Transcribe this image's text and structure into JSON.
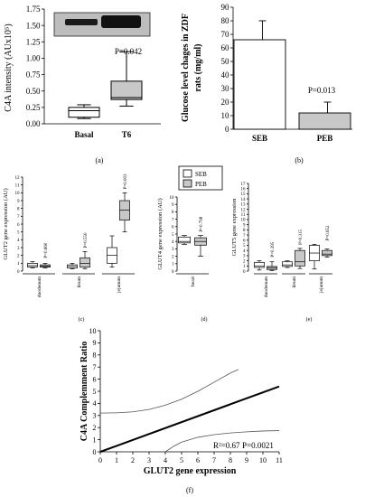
{
  "chart_data": [
    {
      "panel": "a",
      "type": "box",
      "ylabel": "C4A  intensity (AUx10⁵)",
      "yticks": [
        "0.00",
        "0.25",
        "0.50",
        "0.75",
        "1.00",
        "1.25",
        "1.50",
        "1.75"
      ],
      "ylim": [
        0,
        1.75
      ],
      "categories": [
        "Basal",
        "T6"
      ],
      "boxes": [
        {
          "category": "Basal",
          "min": 0.08,
          "q1": 0.1,
          "median": 0.2,
          "q3": 0.25,
          "max": 0.29,
          "fill": "#ffffff"
        },
        {
          "category": "T6",
          "min": 0.27,
          "q1": 0.37,
          "median": 0.4,
          "q3": 0.65,
          "max": 1.1,
          "fill": "#c8c8c8"
        }
      ],
      "annotation": "P=0.042",
      "caption": "(a)",
      "inset": "western blot bands"
    },
    {
      "panel": "b",
      "type": "bar",
      "ylabel": "Glucose  level chages in ZDF rats (mg/ml)",
      "yticks": [
        "0",
        "10",
        "20",
        "30",
        "40",
        "50",
        "60",
        "70",
        "80",
        "90"
      ],
      "ylim": [
        0,
        90
      ],
      "categories": [
        "SEB",
        "PEB"
      ],
      "values": [
        66,
        12
      ],
      "errors": [
        14,
        8
      ],
      "colors": [
        "#ffffff",
        "#c8c8c8"
      ],
      "annotation": "P=0.013",
      "caption": "(b)"
    },
    {
      "panel": "c",
      "type": "box",
      "ylabel": "GLUT2 gene expression (AU)",
      "yticks": [
        "0",
        "1",
        "2",
        "3",
        "4",
        "5",
        "6",
        "7",
        "8",
        "9",
        "10",
        "11",
        "12"
      ],
      "ylim": [
        0,
        12
      ],
      "groups": [
        "duodenum",
        "ileum",
        "jejunum"
      ],
      "boxes": [
        {
          "group": "duodenum",
          "series": "SEB",
          "min": 0.4,
          "q1": 0.5,
          "median": 0.7,
          "q3": 1.0,
          "max": 1.2
        },
        {
          "group": "duodenum",
          "series": "PEB",
          "min": 0.4,
          "q1": 0.5,
          "median": 0.65,
          "q3": 0.8,
          "max": 1.0
        },
        {
          "group": "ileum",
          "series": "SEB",
          "min": 0.3,
          "q1": 0.4,
          "median": 0.6,
          "q3": 0.8,
          "max": 1.0
        },
        {
          "group": "ileum",
          "series": "PEB",
          "min": 0.3,
          "q1": 0.5,
          "median": 1.0,
          "q3": 1.7,
          "max": 2.5
        },
        {
          "group": "jejunum",
          "series": "SEB",
          "min": 0.5,
          "q1": 1.0,
          "median": 2.0,
          "q3": 3.0,
          "max": 4.5
        },
        {
          "group": "jejunum",
          "series": "PEB",
          "min": 5.0,
          "q1": 6.5,
          "median": 7.8,
          "q3": 9.0,
          "max": 10.0
        }
      ],
      "annotations": [
        "P=0.660",
        "P=0.550",
        "P=0.003"
      ],
      "caption": "(c)"
    },
    {
      "panel": "d",
      "type": "box",
      "ylabel": "GLUT4 gene expression (AU)",
      "yticks": [
        "0",
        "1",
        "2",
        "3",
        "4",
        "5",
        "6",
        "7",
        "8",
        "9",
        "10"
      ],
      "ylim": [
        0,
        10
      ],
      "groups": [
        "heart"
      ],
      "boxes": [
        {
          "group": "heart",
          "series": "SEB",
          "min": 3.6,
          "q1": 3.8,
          "median": 4.0,
          "q3": 4.6,
          "max": 4.8
        },
        {
          "group": "heart",
          "series": "PEB",
          "min": 2.0,
          "q1": 3.5,
          "median": 4.0,
          "q3": 4.5,
          "max": 4.8
        }
      ],
      "annotations": [
        "P=0.798"
      ],
      "caption": "(d)"
    },
    {
      "panel": "e",
      "type": "box",
      "ylabel": "GLUT5 gene expression",
      "yticks": [
        "0",
        "1",
        "2",
        "3",
        "4",
        "5",
        "6",
        "7",
        "8",
        "9",
        "10",
        "11",
        "12",
        "13",
        "14",
        "15",
        "16",
        "17"
      ],
      "ylim": [
        0,
        17
      ],
      "groups": [
        "duodenum",
        "ileum",
        "jejunum"
      ],
      "boxes": [
        {
          "group": "duodenum",
          "series": "SEB",
          "min": 0.2,
          "q1": 0.7,
          "median": 1.0,
          "q3": 1.7,
          "max": 2.0
        },
        {
          "group": "duodenum",
          "series": "PEB",
          "min": 0.1,
          "q1": 0.3,
          "median": 0.6,
          "q3": 0.9,
          "max": 1.8
        },
        {
          "group": "ileum",
          "series": "SEB",
          "min": 0.7,
          "q1": 0.9,
          "median": 1.2,
          "q3": 1.8,
          "max": 2.0
        },
        {
          "group": "ileum",
          "series": "PEB",
          "min": 0.5,
          "q1": 1.0,
          "median": 1.8,
          "q3": 4.0,
          "max": 4.4
        },
        {
          "group": "jejunum",
          "series": "SEB",
          "min": 0.4,
          "q1": 2.0,
          "median": 3.5,
          "q3": 5.0,
          "max": 5.2
        },
        {
          "group": "jejunum",
          "series": "PEB",
          "min": 2.7,
          "q1": 3.0,
          "median": 3.3,
          "q3": 4.0,
          "max": 4.3
        }
      ],
      "annotations": [
        "P=0.395",
        "P=0.315",
        "P=0.652"
      ],
      "caption": "(e)"
    },
    {
      "panel": "legend",
      "items": [
        {
          "label": "SEB",
          "color": "#ffffff"
        },
        {
          "label": "PEB",
          "color": "#c8c8c8"
        }
      ]
    },
    {
      "panel": "f",
      "type": "line",
      "xlabel": "GLUT2 gene expression",
      "ylabel": "C4A Complemment Ratio",
      "xticks": [
        "0",
        "1",
        "2",
        "3",
        "4",
        "5",
        "6",
        "7",
        "8",
        "9",
        "10",
        "11"
      ],
      "yticks": [
        "0",
        "1",
        "2",
        "3",
        "4",
        "5",
        "6",
        "7",
        "8",
        "9",
        "10"
      ],
      "xlim": [
        0,
        11
      ],
      "ylim": [
        0,
        10
      ],
      "regression": {
        "x": [
          0,
          11
        ],
        "y": [
          0,
          5.4
        ]
      },
      "upper_band": {
        "x": [
          0,
          1,
          2,
          3,
          4,
          5,
          6,
          7,
          8,
          8.5
        ],
        "y": [
          3.2,
          3.22,
          3.3,
          3.5,
          3.85,
          4.35,
          5.0,
          5.75,
          6.5,
          6.8
        ]
      },
      "lower_band": {
        "x": [
          4,
          4.5,
          5,
          6,
          7,
          8,
          9,
          10,
          11
        ],
        "y": [
          0,
          0.45,
          0.8,
          1.2,
          1.42,
          1.56,
          1.65,
          1.72,
          1.75
        ]
      },
      "annotations": [
        "R²=0.67",
        "P=0.0021"
      ],
      "caption": "(f)"
    }
  ]
}
